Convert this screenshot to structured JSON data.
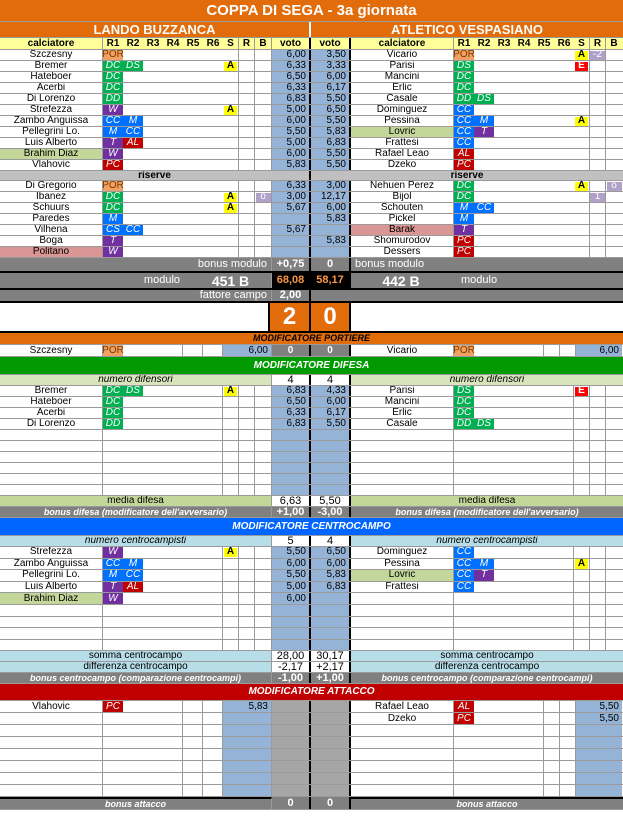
{
  "title": "COPPA DI SEGA - 3a giornata",
  "columns": {
    "player": "calciatore",
    "roles": [
      "R1",
      "R2",
      "R3",
      "R4",
      "R5",
      "R6"
    ],
    "s": "S",
    "r": "R",
    "b": "B",
    "vote": "voto"
  },
  "labels": {
    "riserve": "riserve",
    "bonus_modulo": "bonus modulo",
    "modulo": "modulo",
    "fattore_campo": "fattore campo"
  },
  "colors": {
    "orange": "#e26b0a",
    "green_band": "#009a00",
    "blue_band": "#0066ff",
    "red_band": "#c00000",
    "vote": "#95b3d7",
    "header": "#ffff99"
  },
  "role_colors": {
    "POR": "#f0a060",
    "DC": "#00b050",
    "DS": "#00b050",
    "DD": "#00b050",
    "CC": "#0070ff",
    "M": "#0070ff",
    "CS": "#0070ff",
    "W": "#7030a0",
    "T": "#7030a0",
    "AL": "#c00000",
    "PC": "#c00000"
  },
  "home": {
    "team": "LANDO BUZZANCA",
    "starters": [
      {
        "name": "Szczesny",
        "roles": [
          "POR"
        ],
        "voto": "6,00"
      },
      {
        "name": "Bremer",
        "roles": [
          "DC",
          "DS"
        ],
        "s": "A",
        "voto": "6,33"
      },
      {
        "name": "Hateboer",
        "roles": [
          "DC"
        ],
        "voto": "6,50"
      },
      {
        "name": "Acerbi",
        "roles": [
          "DC"
        ],
        "voto": "6,33"
      },
      {
        "name": "Di Lorenzo",
        "roles": [
          "DD"
        ],
        "voto": "6,83"
      },
      {
        "name": "Strefezza",
        "roles": [
          "W"
        ],
        "s": "A",
        "voto": "5,00"
      },
      {
        "name": "Zambo Anguissa",
        "roles": [
          "CC",
          "M"
        ],
        "voto": "6,00"
      },
      {
        "name": "Pellegrini Lo.",
        "roles": [
          "M",
          "CC"
        ],
        "voto": "5,50"
      },
      {
        "name": "Luis Alberto",
        "roles": [
          "T",
          "AL"
        ],
        "voto": "5,00"
      },
      {
        "name": "Brahim Diaz",
        "roles": [
          "W"
        ],
        "voto": "6,00",
        "hl": "green"
      },
      {
        "name": "Vlahovic",
        "roles": [
          "PC"
        ],
        "voto": "5,83"
      }
    ],
    "reserves": [
      {
        "name": "Di Gregorio",
        "roles": [
          "POR"
        ],
        "voto": "6,33"
      },
      {
        "name": "Ibanez",
        "roles": [
          "DC"
        ],
        "s": "A",
        "b": "o",
        "voto": "3,00"
      },
      {
        "name": "Schuurs",
        "roles": [
          "DC"
        ],
        "s": "A",
        "voto": "5,67"
      },
      {
        "name": "Paredes",
        "roles": [
          "M"
        ]
      },
      {
        "name": "Vilhena",
        "roles": [
          "CS",
          "CC"
        ],
        "voto": "5,67"
      },
      {
        "name": "Boga",
        "roles": [
          "T"
        ]
      },
      {
        "name": "Politano",
        "roles": [
          "W"
        ],
        "hl": "pink"
      }
    ],
    "bonus_modulo": "+0,75",
    "modulo": "451 B",
    "total": "68,08",
    "fattore_campo": "2,00",
    "goals": "2"
  },
  "away": {
    "team": "ATLETICO VESPASIANO",
    "starters": [
      {
        "name": "Vicario",
        "roles": [
          "POR"
        ],
        "s": "A",
        "r": "-2",
        "voto": "3,50"
      },
      {
        "name": "Parisi",
        "roles": [
          "DS"
        ],
        "s": "E",
        "voto": "3,33"
      },
      {
        "name": "Mancini",
        "roles": [
          "DC"
        ],
        "voto": "6,00"
      },
      {
        "name": "Erlic",
        "roles": [
          "DC"
        ],
        "voto": "6,17"
      },
      {
        "name": "Casale",
        "roles": [
          "DD",
          "DS"
        ],
        "voto": "5,50"
      },
      {
        "name": "Dominguez",
        "roles": [
          "CC"
        ],
        "voto": "6,50"
      },
      {
        "name": "Pessina",
        "roles": [
          "CC",
          "M"
        ],
        "s": "A",
        "voto": "5,50"
      },
      {
        "name": "Lovric",
        "roles": [
          "CC",
          "T"
        ],
        "voto": "5,83",
        "hl": "green"
      },
      {
        "name": "Frattesi",
        "roles": [
          "CC"
        ],
        "voto": "6,83"
      },
      {
        "name": "Rafael Leao",
        "roles": [
          "AL"
        ],
        "voto": "5,50"
      },
      {
        "name": "Dzeko",
        "roles": [
          "PC"
        ],
        "voto": "5,50"
      }
    ],
    "reserves": [
      {
        "name": "Nehuen Perez",
        "roles": [
          "DC"
        ],
        "s": "A",
        "b": "o",
        "voto": "3,00"
      },
      {
        "name": "Bijol",
        "roles": [
          "DC"
        ],
        "r": "1",
        "voto": "12,17"
      },
      {
        "name": "Schouten",
        "roles": [
          "M",
          "CC"
        ],
        "voto": "6,00"
      },
      {
        "name": "Pickel",
        "roles": [
          "M"
        ],
        "voto": "5,83"
      },
      {
        "name": "Barak",
        "roles": [
          "T"
        ],
        "hl": "pink"
      },
      {
        "name": "Shomurodov",
        "roles": [
          "PC"
        ],
        "voto": "5,83"
      },
      {
        "name": "Dessers",
        "roles": [
          "PC"
        ]
      }
    ],
    "bonus_modulo": "0",
    "modulo": "442 B",
    "total": "58,17",
    "goals": "0"
  },
  "modifiers": {
    "portiere": {
      "title": "MODIFICATORE PORTIERE",
      "home": {
        "name": "Szczesny",
        "roles": [
          "POR"
        ],
        "voto": "6,00"
      },
      "away": {
        "name": "Vicario",
        "roles": [
          "POR"
        ],
        "voto": "6,00"
      },
      "home_bonus": "0",
      "away_bonus": "0"
    },
    "difesa": {
      "title": "MODIFICATORE DIFESA",
      "count_label": "numero difensori",
      "home_count": "4",
      "away_count": "4",
      "home": [
        {
          "name": "Bremer",
          "roles": [
            "DC",
            "DS"
          ],
          "s": "A",
          "voto": "6,83"
        },
        {
          "name": "Hateboer",
          "roles": [
            "DC"
          ],
          "voto": "6,50"
        },
        {
          "name": "Acerbi",
          "roles": [
            "DC"
          ],
          "voto": "6,33"
        },
        {
          "name": "Di Lorenzo",
          "roles": [
            "DD"
          ],
          "voto": "6,83"
        }
      ],
      "away": [
        {
          "name": "Parisi",
          "roles": [
            "DS"
          ],
          "s": "E",
          "voto": "4,33"
        },
        {
          "name": "Mancini",
          "roles": [
            "DC"
          ],
          "voto": "6,00"
        },
        {
          "name": "Erlic",
          "roles": [
            "DC"
          ],
          "voto": "6,17"
        },
        {
          "name": "Casale",
          "roles": [
            "DD",
            "DS"
          ],
          "voto": "5,50"
        }
      ],
      "media_label": "media difesa",
      "home_media": "6,63",
      "away_media": "5,50",
      "bonus_label": "bonus difesa (modificatore dell'avversario)",
      "home_bonus": "+1,00",
      "away_bonus": "-3,00"
    },
    "centrocampo": {
      "title": "MODIFICATORE CENTROCAMPO",
      "count_label": "numero centrocampisti",
      "home_count": "5",
      "away_count": "4",
      "home": [
        {
          "name": "Strefezza",
          "roles": [
            "W"
          ],
          "s": "A",
          "voto": "5,50"
        },
        {
          "name": "Zambo Anguissa",
          "roles": [
            "CC",
            "M"
          ],
          "voto": "6,00"
        },
        {
          "name": "Pellegrini Lo.",
          "roles": [
            "M",
            "CC"
          ],
          "voto": "5,50"
        },
        {
          "name": "Luis Alberto",
          "roles": [
            "T",
            "AL"
          ],
          "voto": "5,00"
        },
        {
          "name": "Brahim Diaz",
          "roles": [
            "W"
          ],
          "voto": "6,00",
          "hl": "green"
        }
      ],
      "away": [
        {
          "name": "Dominguez",
          "roles": [
            "CC"
          ],
          "voto": "6,50"
        },
        {
          "name": "Pessina",
          "roles": [
            "CC",
            "M"
          ],
          "s": "A",
          "voto": "6,00"
        },
        {
          "name": "Lovric",
          "roles": [
            "CC",
            "T"
          ],
          "voto": "5,83",
          "hl": "green"
        },
        {
          "name": "Frattesi",
          "roles": [
            "CC"
          ],
          "voto": "6,83"
        }
      ],
      "somma_label": "somma centrocampo",
      "home_somma": "28,00",
      "away_somma": "30,17",
      "diff_label": "differenza centrocampo",
      "home_diff": "-2,17",
      "away_diff": "+2,17",
      "bonus_label": "bonus centrocampo (comparazione centrocampi)",
      "home_bonus": "-1,00",
      "away_bonus": "+1,00"
    },
    "attacco": {
      "title": "MODIFICATORE ATTACCO",
      "home": [
        {
          "name": "Vlahovic",
          "roles": [
            "PC"
          ],
          "voto": "5,83"
        }
      ],
      "away": [
        {
          "name": "Rafael Leao",
          "roles": [
            "AL"
          ],
          "voto": "5,50"
        },
        {
          "name": "Dzeko",
          "roles": [
            "PC"
          ],
          "voto": "5,50"
        }
      ],
      "bonus_label": "bonus attacco",
      "home_bonus": "0",
      "away_bonus": "0"
    }
  }
}
